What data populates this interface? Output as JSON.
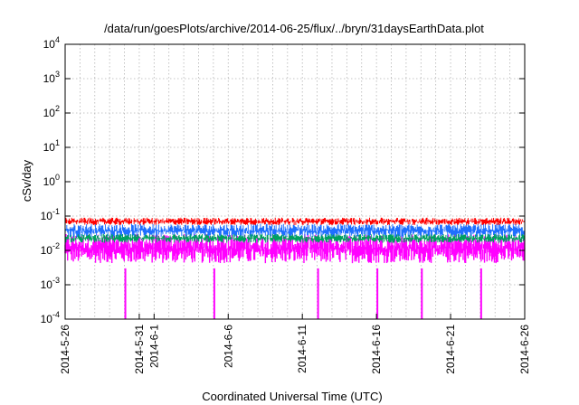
{
  "chart_data": {
    "type": "line",
    "title": "/data/run/goesPlots/archive/2014-06-25/flux/../bryn/31daysEarthData.plot",
    "xlabel": "Coordinated Universal Time (UTC)",
    "ylabel": "cSv/day",
    "yscale": "log",
    "ylim": [
      0.0001,
      10000
    ],
    "xlim": [
      "2014-05-26",
      "2014-06-26"
    ],
    "grid": true,
    "y_ticks": [
      {
        "base": "10",
        "exp": "-4"
      },
      {
        "base": "10",
        "exp": "-3"
      },
      {
        "base": "10",
        "exp": "-2"
      },
      {
        "base": "10",
        "exp": "-1"
      },
      {
        "base": "10",
        "exp": "0"
      },
      {
        "base": "10",
        "exp": "1"
      },
      {
        "base": "10",
        "exp": "2"
      },
      {
        "base": "10",
        "exp": "3"
      },
      {
        "base": "10",
        "exp": "4"
      }
    ],
    "x_ticks": [
      {
        "date": "2014-05-26",
        "label": "2014-5-26"
      },
      {
        "date": "2014-05-31",
        "label": "2014-5-31"
      },
      {
        "date": "2014-06-01",
        "label": "2014-6-1"
      },
      {
        "date": "2014-06-06",
        "label": "2014-6-6"
      },
      {
        "date": "2014-06-11",
        "label": "2014-6-11"
      },
      {
        "date": "2014-06-16",
        "label": "2014-6-16"
      },
      {
        "date": "2014-06-21",
        "label": "2014-6-21"
      },
      {
        "date": "2014-06-26",
        "label": "2014-6-26"
      }
    ],
    "series": [
      {
        "color": "#ff0000",
        "typical_range": [
          0.05,
          0.09
        ],
        "max": 0.095
      },
      {
        "color": "#1e6fff",
        "typical_range": [
          0.02,
          0.06
        ],
        "max": 0.1
      },
      {
        "color": "#00a060",
        "typical_range": [
          0.015,
          0.03
        ],
        "max": 0.04
      },
      {
        "color": "#ff00ff",
        "typical_range": [
          0.003,
          0.03
        ],
        "min": 0.0001,
        "dropouts": [
          "2014-05-30",
          "2014-06-05",
          "2014-06-12",
          "2014-06-16",
          "2014-06-19",
          "2014-06-23"
        ]
      }
    ]
  }
}
